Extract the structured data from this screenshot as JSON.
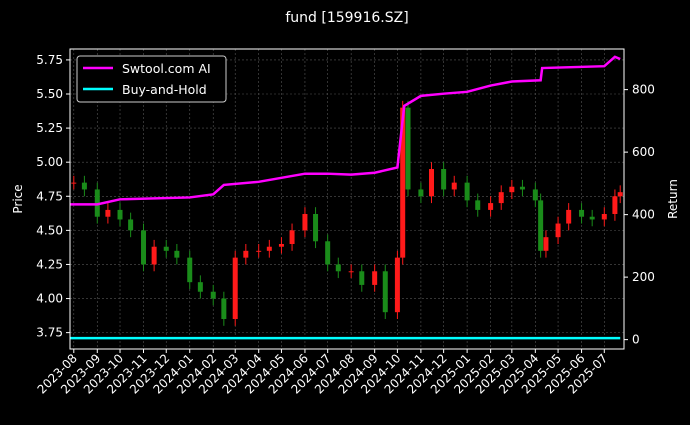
{
  "chart_data": {
    "type": "line",
    "title": "fund [159916.SZ]",
    "ylabel_left": "Price",
    "ylabel_right": "Return",
    "xlim": [
      "2023-07-27",
      "2025-07-27"
    ],
    "ylim_left": [
      3.63,
      5.83
    ],
    "ylim_right": [
      -30,
      930
    ],
    "yticks_left": [
      "3.75",
      "4.00",
      "4.25",
      "4.50",
      "4.75",
      "5.00",
      "5.25",
      "5.50",
      "5.75"
    ],
    "yticks_right": [
      "0",
      "200",
      "400",
      "600",
      "800"
    ],
    "xticks": [
      "2023-08",
      "2023-09",
      "2023-10",
      "2023-11",
      "2023-12",
      "2024-01",
      "2024-02",
      "2024-03",
      "2024-04",
      "2024-05",
      "2024-06",
      "2024-07",
      "2024-08",
      "2024-09",
      "2024-10",
      "2024-11",
      "2024-12",
      "2025-01",
      "2025-02",
      "2025-03",
      "2025-04",
      "2025-05",
      "2025-06",
      "2025-07"
    ],
    "grid": true,
    "legend_position": "top-left",
    "colors": {
      "up": "#ff1a1a",
      "down": "#1a8c1a",
      "strategy": "#ff00ff",
      "buyhold": "#00ffff"
    },
    "price": {
      "x": [
        "2023-08-01",
        "2023-08-15",
        "2023-09-01",
        "2023-09-15",
        "2023-10-01",
        "2023-10-15",
        "2023-11-01",
        "2023-11-15",
        "2023-12-01",
        "2023-12-15",
        "2024-01-01",
        "2024-01-15",
        "2024-02-01",
        "2024-02-15",
        "2024-03-01",
        "2024-03-15",
        "2024-04-01",
        "2024-04-15",
        "2024-05-01",
        "2024-05-15",
        "2024-06-01",
        "2024-06-15",
        "2024-07-01",
        "2024-07-15",
        "2024-08-01",
        "2024-08-15",
        "2024-09-01",
        "2024-09-15",
        "2024-10-01",
        "2024-10-08",
        "2024-10-15",
        "2024-11-01",
        "2024-11-15",
        "2024-12-01",
        "2024-12-15",
        "2025-01-01",
        "2025-01-15",
        "2025-02-01",
        "2025-02-15",
        "2025-03-01",
        "2025-03-15",
        "2025-04-01",
        "2025-04-08",
        "2025-04-15",
        "2025-05-01",
        "2025-05-15",
        "2025-06-01",
        "2025-06-15",
        "2025-07-01",
        "2025-07-15",
        "2025-07-22"
      ],
      "close": [
        4.85,
        4.8,
        4.6,
        4.65,
        4.58,
        4.5,
        4.25,
        4.38,
        4.35,
        4.3,
        4.12,
        4.05,
        4.0,
        3.85,
        4.3,
        4.35,
        4.35,
        4.38,
        4.4,
        4.5,
        4.62,
        4.42,
        4.25,
        4.2,
        4.2,
        4.1,
        4.2,
        3.9,
        4.3,
        5.4,
        4.8,
        4.75,
        4.95,
        4.8,
        4.85,
        4.72,
        4.65,
        4.7,
        4.78,
        4.82,
        4.8,
        4.72,
        4.35,
        4.45,
        4.55,
        4.65,
        4.6,
        4.58,
        4.62,
        4.75,
        4.78
      ]
    },
    "series": [
      {
        "name": "Swtool.com AI",
        "x": [
          "2023-07-27",
          "2023-09-01",
          "2023-10-01",
          "2024-01-01",
          "2024-02-01",
          "2024-02-15",
          "2024-04-01",
          "2024-06-01",
          "2024-07-01",
          "2024-08-01",
          "2024-09-01",
          "2024-10-01",
          "2024-10-10",
          "2024-11-01",
          "2024-12-01",
          "2025-01-01",
          "2025-02-01",
          "2025-03-01",
          "2025-04-08",
          "2025-04-10",
          "2025-07-01",
          "2025-07-15",
          "2025-07-22"
        ],
        "values": [
          433,
          433,
          449,
          455,
          465,
          495,
          505,
          531,
          531,
          528,
          534,
          551,
          748,
          780,
          787,
          793,
          813,
          826,
          830,
          869,
          875,
          905,
          898
        ]
      },
      {
        "name": "Buy-and-Hold",
        "x": [
          "2023-07-27",
          "2025-07-22"
        ],
        "values": [
          5,
          5
        ]
      }
    ]
  }
}
